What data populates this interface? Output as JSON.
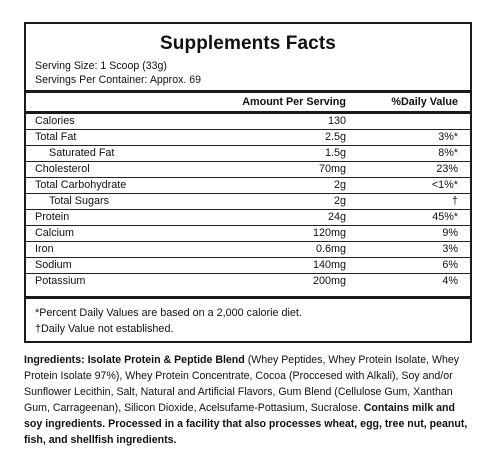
{
  "title": "Supplements Facts",
  "serving_size": "Serving Size: 1 Scoop (33g)",
  "servings_per_container": "Servings Per Container: Approx. 69",
  "header": {
    "amount": "Amount Per Serving",
    "daily_value": "%Daily Value"
  },
  "rows": [
    {
      "name": "Calories",
      "amount": "130",
      "dv": "",
      "indent": false
    },
    {
      "name": "Total Fat",
      "amount": "2.5g",
      "dv": "3%*",
      "indent": false
    },
    {
      "name": "Saturated Fat",
      "amount": "1.5g",
      "dv": "8%*",
      "indent": true
    },
    {
      "name": "Cholesterol",
      "amount": "70mg",
      "dv": "23%",
      "indent": false
    },
    {
      "name": "Total Carbohydrate",
      "amount": "2g",
      "dv": "<1%*",
      "indent": false
    },
    {
      "name": "Total Sugars",
      "amount": "2g",
      "dv": "†",
      "indent": true
    },
    {
      "name": "Protein",
      "amount": "24g",
      "dv": "45%*",
      "indent": false
    },
    {
      "name": "Calcium",
      "amount": "120mg",
      "dv": "9%",
      "indent": false
    },
    {
      "name": "Iron",
      "amount": "0.6mg",
      "dv": "3%",
      "indent": false
    },
    {
      "name": "Sodium",
      "amount": "140mg",
      "dv": "6%",
      "indent": false
    },
    {
      "name": "Potassium",
      "amount": "200mg",
      "dv": "4%",
      "indent": false
    }
  ],
  "footnotes": {
    "daily_values": "*Percent Daily Values are based on a 2,000 calorie diet.",
    "not_established": "†Daily Value not established."
  },
  "ingredients": {
    "label": "Ingredients:",
    "blend_name": "Isolate Protein & Peptide Blend",
    "list": " (Whey Peptides, Whey Protein Isolate, Whey Protein Isolate 97%), Whey Protein Concentrate, Cocoa (Proccesed with Alkali), Soy and/or Sunflower Lecithin, Salt, Natural and Artificial Flavors, Gum Blend (Cellulose Gum, Xanthan Gum, Carrageenan), Silicon Dioxide, Acelsufame-Pottasium, Sucralose.",
    "allergen": "Contains milk and soy ingredients. Processed in a facility that also processes wheat, egg, tree nut, peanut, fish, and shellfish ingredients."
  }
}
